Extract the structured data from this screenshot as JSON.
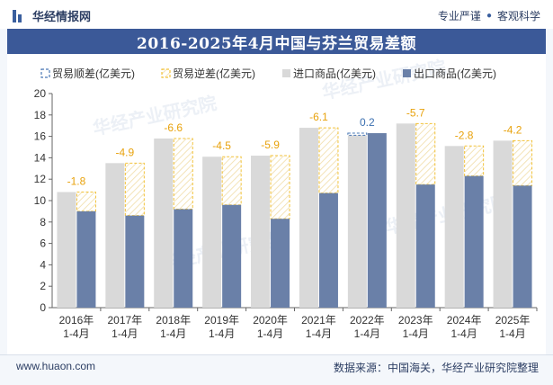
{
  "header": {
    "brand": "华经情报网",
    "slogan_left": "专业严谨",
    "slogan_dot": "●",
    "slogan_right": "客观科学"
  },
  "footer": {
    "site": "www.huaon.com",
    "source": "数据来源：中国海关，华经产业研究院整理"
  },
  "watermark": "华经产业研究院",
  "colors": {
    "import": "#d9d9d9",
    "export": "#6a80a8",
    "surplus_border": "#4a78b5",
    "deficit_border": "#f2c23a",
    "title_bg": "#3b5998",
    "deficit_label": "#e8a20c",
    "surplus_label": "#3a6fb0"
  },
  "chart_data": {
    "type": "bar",
    "title": "2016-2025年4月中国与芬兰贸易差额",
    "categories": [
      "2016年\n1-4月",
      "2017年\n1-4月",
      "2018年\n1-4月",
      "2019年\n1-4月",
      "2020年\n1-4月",
      "2021年\n1-4月",
      "2022年\n1-4月",
      "2023年\n1-4月",
      "2024年\n1-4月",
      "2025年\n1-4月"
    ],
    "legend": [
      "贸易顺差(亿美元)",
      "贸易逆差(亿美元)",
      "进口商品(亿美元)",
      "出口商品(亿美元)"
    ],
    "legend_position": "top-left",
    "series": [
      {
        "name": "进口商品(亿美元)",
        "values": [
          10.8,
          13.5,
          15.8,
          14.1,
          14.2,
          16.8,
          16.1,
          17.2,
          15.1,
          15.6
        ]
      },
      {
        "name": "出口商品(亿美元)",
        "values": [
          9.0,
          8.6,
          9.2,
          9.6,
          8.3,
          10.7,
          16.3,
          11.5,
          12.3,
          11.4
        ]
      }
    ],
    "balance": [
      -1.8,
      -4.9,
      -6.6,
      -4.5,
      -5.9,
      -6.1,
      0.2,
      -5.7,
      -2.8,
      -4.2
    ],
    "balance_labels": [
      "-1.8",
      "-4.9",
      "-6.6",
      "-4.5",
      "-5.9",
      "-6.1",
      "0.2",
      "-5.7",
      "-2.8",
      "-4.2"
    ],
    "ylim": [
      0,
      20
    ],
    "yticks": [
      "0",
      "2",
      "4",
      "6",
      "8",
      "10",
      "12",
      "14",
      "16",
      "18",
      "20"
    ],
    "xlabel": "",
    "ylabel": "",
    "grid": false
  }
}
